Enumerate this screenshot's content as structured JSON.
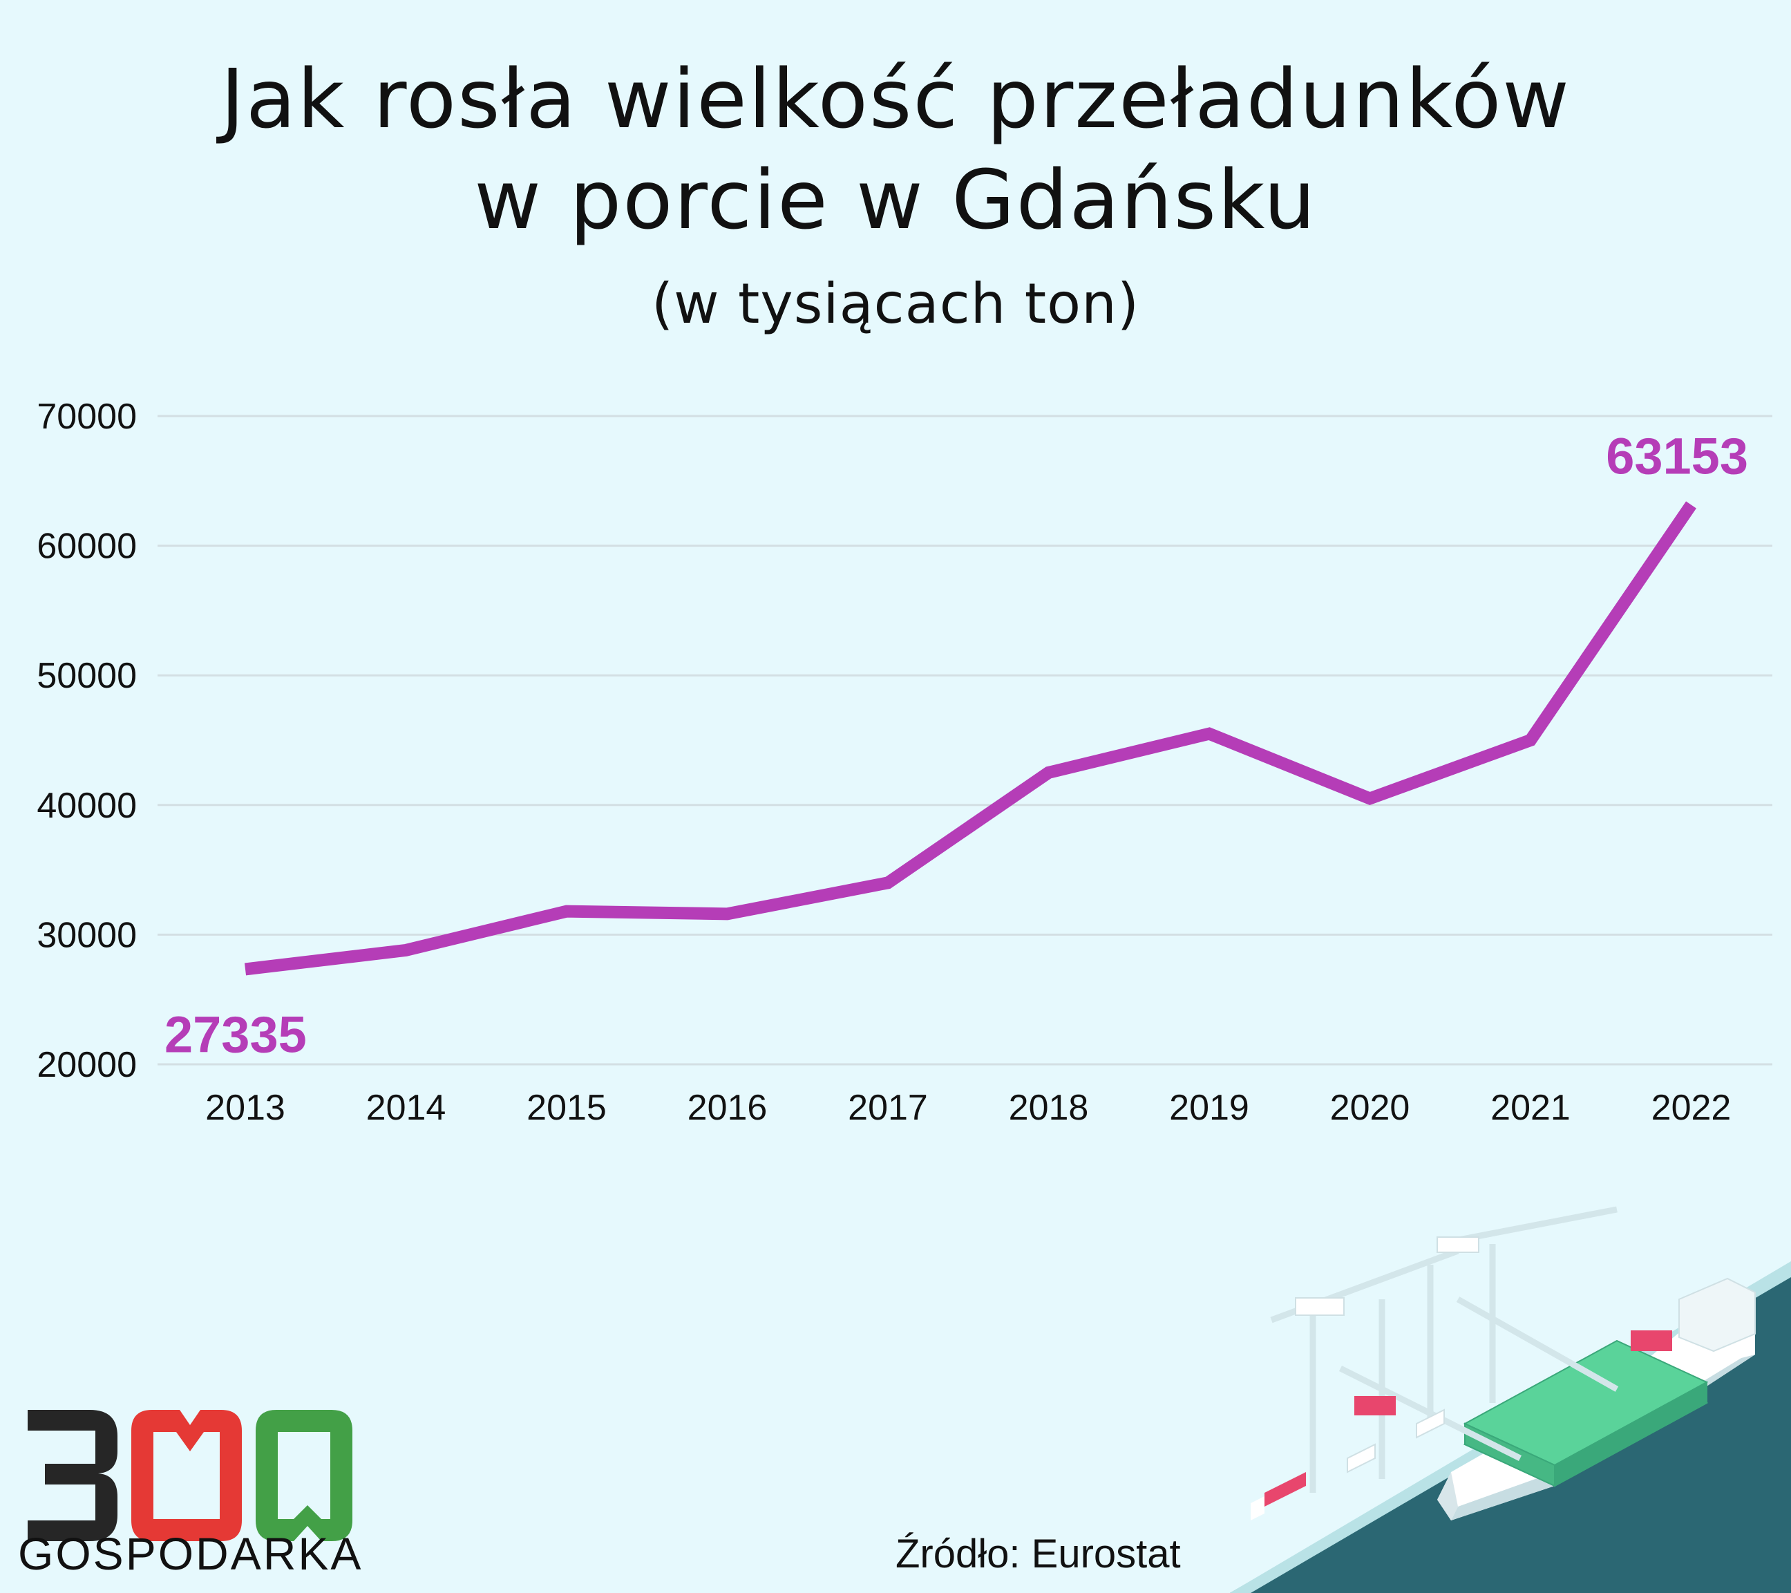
{
  "title_line1": "Jak rosła wielkość przeładunków",
  "title_line2": "w porcie w Gdańsku",
  "subtitle": "(w tysiącach ton)",
  "source": "Źródło: Eurostat",
  "logo": {
    "number": "300",
    "name": "GOSPODARKA",
    "icon": "300-gospodarka-logo"
  },
  "illustration": {
    "icon": "container-port-illustration"
  },
  "colors": {
    "background": "#e6f9fd",
    "line": "#b53db7",
    "grid": "#d3dfe3",
    "logo_dark": "#262626",
    "logo_red": "#e53935",
    "logo_green": "#43a047"
  },
  "chart_data": {
    "type": "line",
    "title": "Jak rosła wielkość przeładunków w porcie w Gdańsku",
    "subtitle": "(w tysiącach ton)",
    "x": [
      "2013",
      "2014",
      "2015",
      "2016",
      "2017",
      "2018",
      "2019",
      "2020",
      "2021",
      "2022"
    ],
    "series": [
      {
        "values": [
          27335,
          28800,
          31800,
          31600,
          34000,
          42500,
          45500,
          40500,
          45000,
          63153
        ]
      }
    ],
    "ylim": [
      20000,
      70000
    ],
    "yticks": [
      20000,
      30000,
      40000,
      50000,
      60000,
      70000
    ],
    "data_labels": [
      {
        "index": 0,
        "text": "27335"
      },
      {
        "index": 9,
        "text": "63153"
      }
    ],
    "grid": true,
    "legend": "none"
  }
}
